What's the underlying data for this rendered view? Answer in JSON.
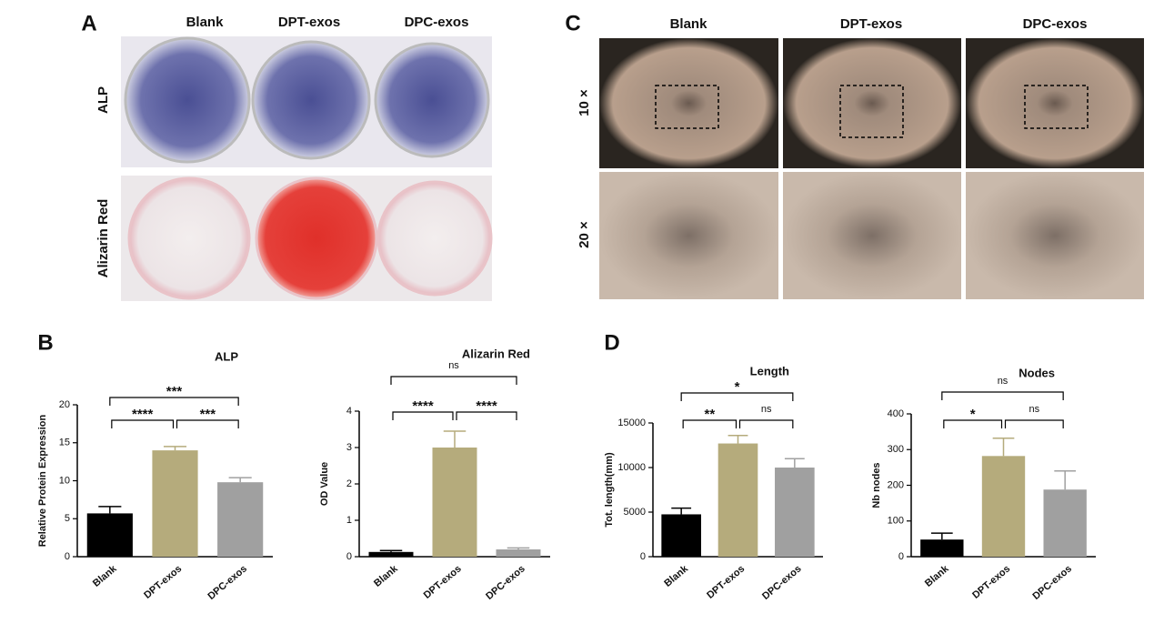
{
  "panels": {
    "A": {
      "label": "A",
      "columns": [
        "Blank",
        "DPT-exos",
        "DPC-exos"
      ],
      "rows": [
        "ALP",
        "Alizarin Red"
      ]
    },
    "B": {
      "label": "B"
    },
    "C": {
      "label": "C",
      "columns": [
        "Blank",
        "DPT-exos",
        "DPC-exos"
      ],
      "rows": [
        "10 ×",
        "20 ×"
      ]
    },
    "D": {
      "label": "D"
    }
  },
  "chart_data": [
    {
      "type": "bar",
      "title": "ALP",
      "ylabel": "Relative Protein Expression",
      "categories": [
        "Blank",
        "DPT-exos",
        "DPC-exos"
      ],
      "values": [
        5.7,
        14,
        9.8
      ],
      "errors": [
        0.9,
        0.5,
        0.6
      ],
      "colors": [
        "#000000",
        "#b5ab7c",
        "#a0a0a0"
      ],
      "ylim": [
        0,
        20
      ],
      "yticks": [
        0,
        5,
        10,
        15,
        20
      ],
      "comparisons": [
        {
          "groups": [
            "Blank",
            "DPT-exos"
          ],
          "label": "****"
        },
        {
          "groups": [
            "DPT-exos",
            "DPC-exos"
          ],
          "label": "***"
        },
        {
          "groups": [
            "Blank",
            "DPC-exos"
          ],
          "label": "***"
        }
      ]
    },
    {
      "type": "bar",
      "title": "Alizarin Red",
      "ylabel": "OD Value",
      "categories": [
        "Blank",
        "DPT-exos",
        "DPC-exos"
      ],
      "values": [
        0.13,
        3.0,
        0.2
      ],
      "errors": [
        0.04,
        0.45,
        0.04
      ],
      "colors": [
        "#000000",
        "#b5ab7c",
        "#a0a0a0"
      ],
      "ylim": [
        0,
        4
      ],
      "yticks": [
        0,
        1,
        2,
        3,
        4
      ],
      "comparisons": [
        {
          "groups": [
            "Blank",
            "DPT-exos"
          ],
          "label": "****"
        },
        {
          "groups": [
            "DPT-exos",
            "DPC-exos"
          ],
          "label": "****"
        },
        {
          "groups": [
            "Blank",
            "DPC-exos"
          ],
          "label": "ns"
        }
      ]
    },
    {
      "type": "bar",
      "title": "Length",
      "ylabel": "Tot. length(mm)",
      "categories": [
        "Blank",
        "DPT-exos",
        "DPC-exos"
      ],
      "values": [
        4750,
        12700,
        10000
      ],
      "errors": [
        700,
        900,
        1000
      ],
      "colors": [
        "#000000",
        "#b5ab7c",
        "#a0a0a0"
      ],
      "ylim": [
        0,
        15000
      ],
      "yticks": [
        0,
        5000,
        10000,
        15000
      ],
      "comparisons": [
        {
          "groups": [
            "Blank",
            "DPT-exos"
          ],
          "label": "**"
        },
        {
          "groups": [
            "DPT-exos",
            "DPC-exos"
          ],
          "label": "ns"
        },
        {
          "groups": [
            "Blank",
            "DPC-exos"
          ],
          "label": "*"
        }
      ]
    },
    {
      "type": "bar",
      "title": "Nodes",
      "ylabel": "Nb nodes",
      "categories": [
        "Blank",
        "DPT-exos",
        "DPC-exos"
      ],
      "values": [
        48,
        282,
        188
      ],
      "errors": [
        18,
        50,
        52
      ],
      "colors": [
        "#000000",
        "#b5ab7c",
        "#a0a0a0"
      ],
      "ylim": [
        0,
        400
      ],
      "yticks": [
        0,
        100,
        200,
        300,
        400
      ],
      "comparisons": [
        {
          "groups": [
            "Blank",
            "DPT-exos"
          ],
          "label": "*"
        },
        {
          "groups": [
            "DPT-exos",
            "DPC-exos"
          ],
          "label": "ns"
        },
        {
          "groups": [
            "Blank",
            "DPC-exos"
          ],
          "label": "ns"
        }
      ]
    }
  ]
}
